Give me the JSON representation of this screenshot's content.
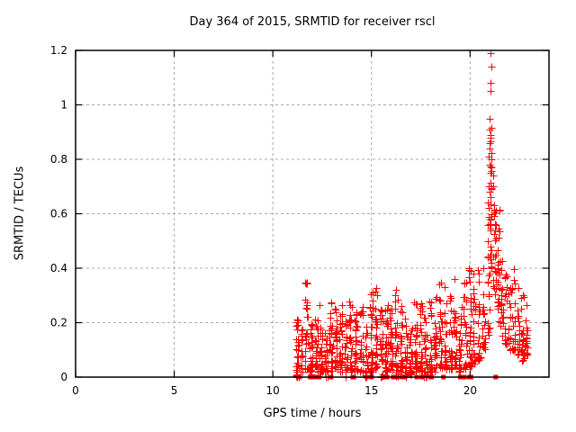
{
  "chart_data": {
    "type": "scatter",
    "title": "Day 364 of 2015, SRMTID for receiver rscl",
    "xlabel": "GPS time / hours",
    "ylabel": "SRMTID / TECUs",
    "xlim": [
      0,
      24
    ],
    "ylim": [
      0,
      1.2
    ],
    "xticks": [
      0,
      5,
      10,
      15,
      20
    ],
    "xtick_labels": [
      "0",
      "5",
      "10",
      "15",
      "20"
    ],
    "yticks": [
      0,
      0.2,
      0.4,
      0.6,
      0.8,
      1,
      1.2
    ],
    "ytick_labels": [
      "0",
      "0.2",
      "0.4",
      "0.6",
      "0.8",
      "1",
      "1.2"
    ],
    "grid": "dotted gray at major ticks",
    "legend": "none",
    "marker": "plus-cross",
    "marker_color": "#ff0000",
    "background_color": "#ffffff",
    "border_color": "#000000",
    "grid_color": "#a8a8a8",
    "data_extent": {
      "x_start": 11.2,
      "x_end": 23.0,
      "peak_x": 21.05,
      "peak_y": 1.19
    },
    "clusters_note": "columns of scatter points: [x_center_hours, half_width_hours, n_points, y_min_TECU, y_max_TECU]",
    "clusters": [
      [
        11.25,
        0.08,
        30,
        0.0,
        0.22
      ],
      [
        11.45,
        0.06,
        18,
        0.02,
        0.18
      ],
      [
        11.7,
        0.07,
        24,
        0.03,
        0.35
      ],
      [
        11.95,
        0.08,
        28,
        0.0,
        0.2
      ],
      [
        12.2,
        0.08,
        24,
        0.02,
        0.22
      ],
      [
        12.45,
        0.08,
        26,
        0.02,
        0.27
      ],
      [
        12.7,
        0.07,
        20,
        0.0,
        0.18
      ],
      [
        12.95,
        0.08,
        28,
        0.02,
        0.3
      ],
      [
        13.2,
        0.07,
        24,
        0.03,
        0.26
      ],
      [
        13.45,
        0.08,
        26,
        0.02,
        0.28
      ],
      [
        13.7,
        0.07,
        20,
        0.0,
        0.22
      ],
      [
        13.95,
        0.08,
        26,
        0.02,
        0.29
      ],
      [
        14.2,
        0.08,
        26,
        0.02,
        0.25
      ],
      [
        14.5,
        0.08,
        24,
        0.02,
        0.26
      ],
      [
        14.75,
        0.07,
        20,
        0.0,
        0.2
      ],
      [
        15.0,
        0.08,
        28,
        0.02,
        0.35
      ],
      [
        15.25,
        0.07,
        24,
        0.03,
        0.33
      ],
      [
        15.5,
        0.08,
        26,
        0.0,
        0.25
      ],
      [
        15.75,
        0.08,
        26,
        0.02,
        0.3
      ],
      [
        16.0,
        0.08,
        26,
        0.02,
        0.28
      ],
      [
        16.25,
        0.08,
        26,
        0.0,
        0.33
      ],
      [
        16.5,
        0.08,
        26,
        0.02,
        0.3
      ],
      [
        16.75,
        0.07,
        20,
        0.0,
        0.22
      ],
      [
        17.0,
        0.08,
        24,
        0.01,
        0.2
      ],
      [
        17.25,
        0.08,
        26,
        0.02,
        0.3
      ],
      [
        17.5,
        0.08,
        26,
        0.02,
        0.28
      ],
      [
        17.75,
        0.08,
        26,
        0.0,
        0.25
      ],
      [
        18.0,
        0.08,
        26,
        0.02,
        0.28
      ],
      [
        18.25,
        0.08,
        24,
        0.02,
        0.3
      ],
      [
        18.5,
        0.08,
        26,
        0.02,
        0.37
      ],
      [
        18.75,
        0.07,
        20,
        0.03,
        0.33
      ],
      [
        19.0,
        0.08,
        24,
        0.03,
        0.3
      ],
      [
        19.25,
        0.07,
        24,
        0.04,
        0.37
      ],
      [
        19.5,
        0.08,
        24,
        0.02,
        0.3
      ],
      [
        19.75,
        0.08,
        24,
        0.03,
        0.35
      ],
      [
        20.0,
        0.08,
        28,
        0.04,
        0.45
      ],
      [
        20.2,
        0.07,
        20,
        0.05,
        0.38
      ],
      [
        20.45,
        0.07,
        20,
        0.06,
        0.4
      ],
      [
        20.7,
        0.07,
        18,
        0.1,
        0.45
      ],
      [
        20.95,
        0.08,
        22,
        0.15,
        0.6
      ],
      [
        21.05,
        0.06,
        26,
        0.4,
        0.92
      ],
      [
        21.25,
        0.07,
        22,
        0.3,
        0.72
      ],
      [
        21.45,
        0.07,
        22,
        0.2,
        0.65
      ],
      [
        21.6,
        0.07,
        18,
        0.15,
        0.45
      ],
      [
        21.8,
        0.07,
        16,
        0.12,
        0.38
      ],
      [
        22.0,
        0.07,
        16,
        0.1,
        0.35
      ],
      [
        22.2,
        0.07,
        18,
        0.1,
        0.42
      ],
      [
        22.45,
        0.07,
        20,
        0.08,
        0.35
      ],
      [
        22.65,
        0.07,
        22,
        0.05,
        0.32
      ],
      [
        22.85,
        0.07,
        18,
        0.08,
        0.3
      ]
    ],
    "peak_points": [
      [
        21.05,
        1.19
      ],
      [
        21.06,
        1.14
      ],
      [
        21.02,
        1.08
      ],
      [
        21.04,
        1.05
      ],
      [
        20.98,
        0.95
      ],
      [
        21.0,
        0.91
      ],
      [
        21.02,
        0.88
      ],
      [
        20.97,
        0.86
      ],
      [
        21.01,
        0.84
      ],
      [
        20.96,
        0.81
      ],
      [
        21.1,
        0.8
      ],
      [
        21.0,
        0.78
      ],
      [
        21.04,
        0.75
      ],
      [
        21.15,
        0.74
      ],
      [
        20.95,
        0.7
      ],
      [
        21.18,
        0.7
      ],
      [
        21.0,
        0.68
      ],
      [
        21.05,
        0.66
      ],
      [
        20.9,
        0.64
      ],
      [
        20.93,
        0.62
      ]
    ],
    "zero_value_xs": [
      11.35,
      11.9,
      11.95,
      12.1,
      12.3,
      12.35,
      12.95,
      14.05,
      14.1,
      14.75,
      15.0,
      15.6,
      15.75,
      15.8,
      16.1,
      16.3,
      16.55,
      16.65,
      17.3,
      17.55,
      18.0,
      18.05,
      18.65,
      19.5,
      19.55,
      19.7,
      19.95,
      20.05,
      21.3
    ]
  }
}
